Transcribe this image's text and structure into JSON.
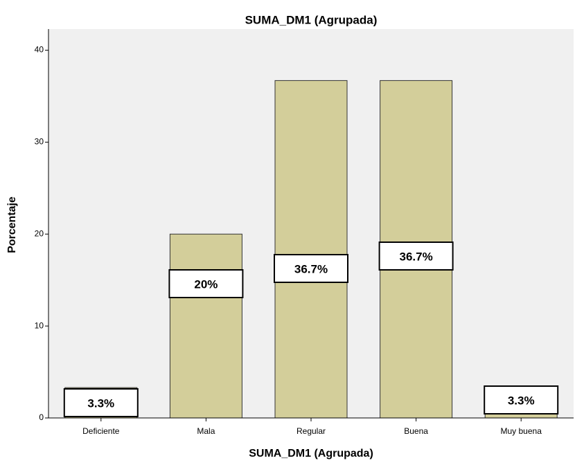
{
  "chart_data": {
    "type": "bar",
    "title": "SUMA_DM1 (Agrupada)",
    "x_label": "SUMA_DM1 (Agrupada)",
    "y_label": "Porcentaje",
    "categories": [
      "Deficiente",
      "Mala",
      "Regular",
      "Buena",
      "Muy buena"
    ],
    "values": [
      3.3,
      20,
      36.7,
      36.7,
      3.3
    ],
    "value_labels": [
      "3.3%",
      "20%",
      "36.7%",
      "36.7%",
      "3.3%"
    ],
    "color": "#d3ce9a",
    "ylim": [
      0,
      42.3
    ],
    "yticks": [
      0,
      10,
      20,
      30,
      40
    ],
    "grid": false
  }
}
